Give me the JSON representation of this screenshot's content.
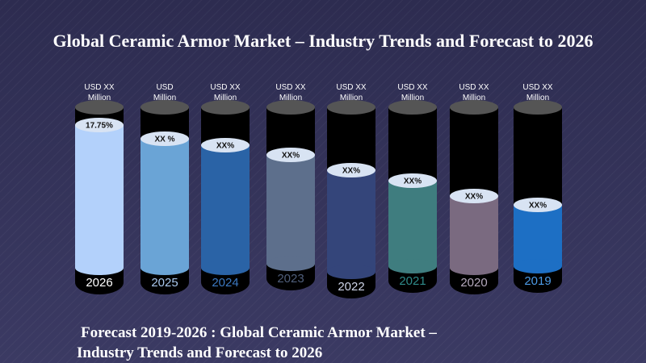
{
  "title": "Global Ceramic Armor Market – Industry Trends and Forecast to 2026",
  "columns": [
    {
      "year": "2026",
      "label": [
        "USD  XX",
        "Million"
      ],
      "share": "17.75%"
    },
    {
      "year": "2025",
      "label": [
        "USD",
        "Million"
      ],
      "share": "XX    %"
    },
    {
      "year": "2024",
      "label": [
        "USD  XX",
        "Million"
      ],
      "share": "XX%"
    },
    {
      "year": "2023",
      "label": [
        "USD XX",
        "Million"
      ],
      "share": "XX%"
    },
    {
      "year": "2022",
      "label": [
        "USD  XX",
        "Million"
      ],
      "share": "XX%"
    },
    {
      "year": "2021",
      "label": [
        "USD  XX",
        "Million"
      ],
      "share": "XX%"
    },
    {
      "year": "2020",
      "label": [
        "USD  XX",
        "Million"
      ],
      "share": "XX%"
    },
    {
      "year": "2019",
      "label": [
        "USD  XX",
        "Million"
      ],
      "share": "XX%"
    }
  ],
  "footer": [
    "Forecast 2019-2026 : Global Ceramic Armor Market –",
    "Industry Trends and Forecast to 2026"
  ]
}
